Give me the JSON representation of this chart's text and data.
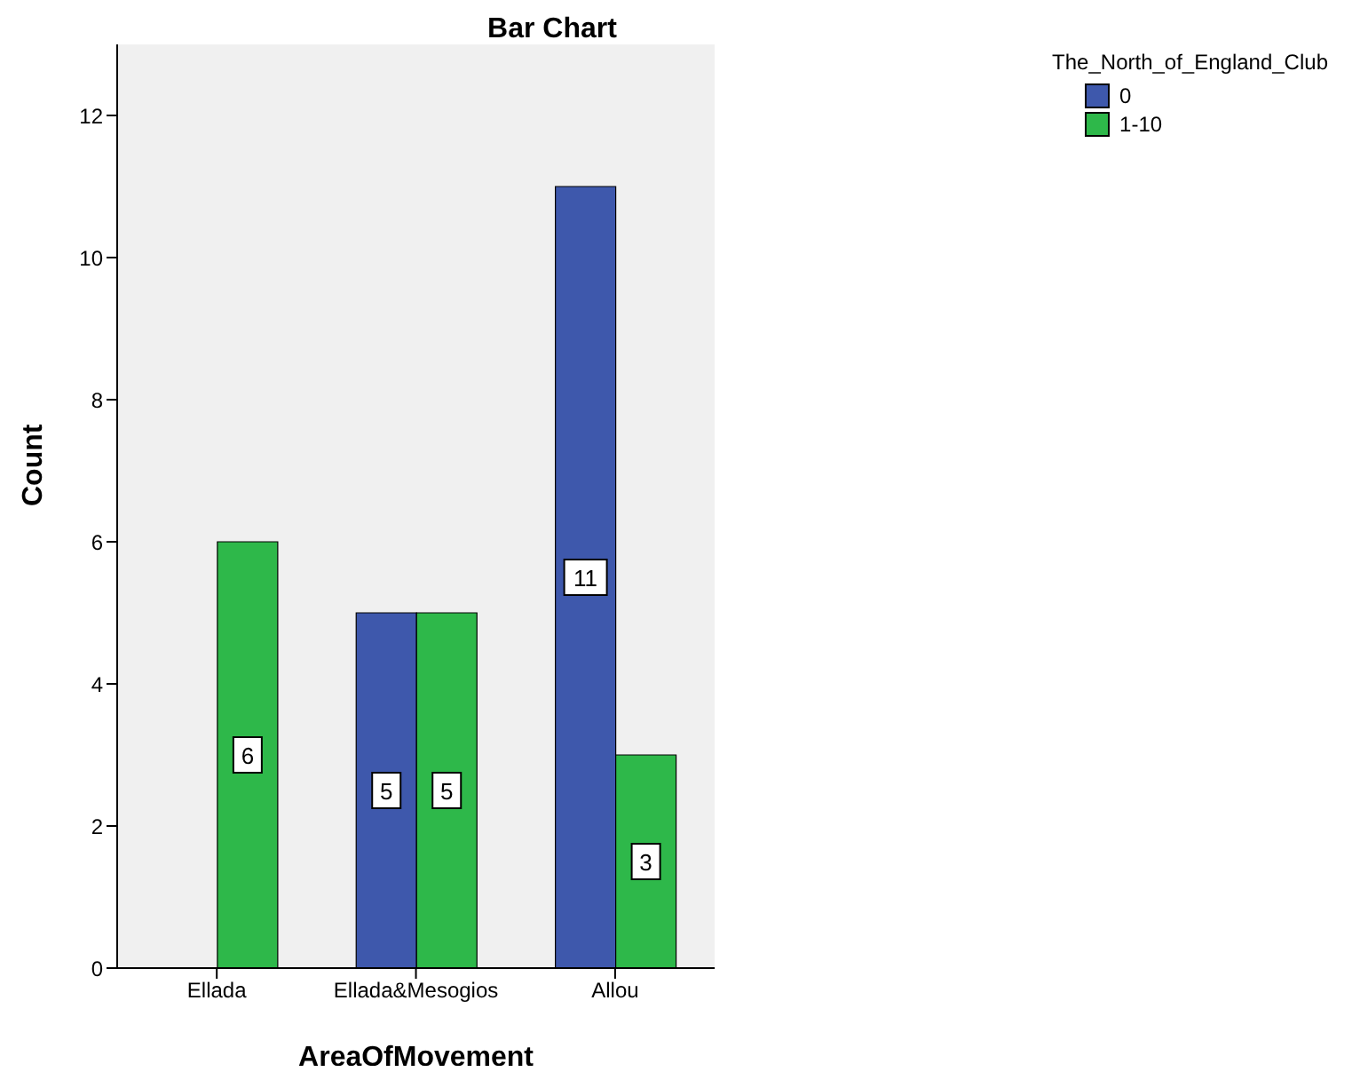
{
  "chart_data": {
    "type": "bar",
    "title": "Bar Chart",
    "xlabel": "AreaOfMovement",
    "ylabel": "Count",
    "legend_title": "The_North_of_England_Club",
    "categories": [
      "Ellada",
      "Ellada&Mesogios",
      "Allou"
    ],
    "series": [
      {
        "name": "0",
        "color": "#3e58ac",
        "values": [
          null,
          5,
          11
        ]
      },
      {
        "name": "1-10",
        "color": "#2eb84a",
        "values": [
          6,
          5,
          3
        ]
      }
    ],
    "ylim": [
      0,
      13
    ],
    "yticks": [
      0,
      2,
      4,
      6,
      8,
      10,
      12
    ],
    "grid": false,
    "legend": "top right",
    "data_labels": true
  }
}
